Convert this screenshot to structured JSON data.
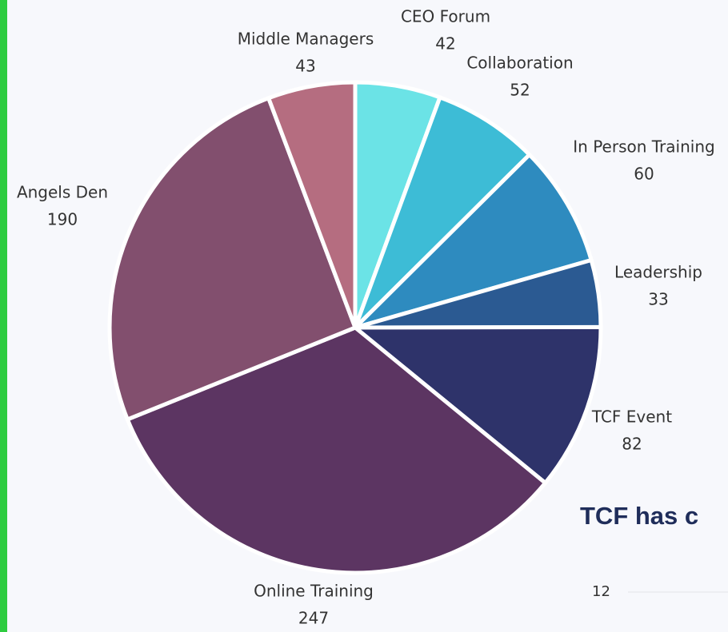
{
  "chart_data": {
    "type": "pie",
    "categories": [
      "CEO Forum",
      "Collaboration",
      "In Person Training",
      "Leadership",
      "TCF Event",
      "Online Training",
      "Angels Den",
      "Middle Managers"
    ],
    "values": [
      42,
      52,
      60,
      33,
      82,
      247,
      190,
      43
    ],
    "colors": [
      "#6be3e6",
      "#3dbcd6",
      "#2e8bbf",
      "#2b5a92",
      "#2e336a",
      "#5c3562",
      "#824f6e",
      "#b56d80"
    ]
  },
  "heading": "TCF has c",
  "axis_fragment": "12"
}
